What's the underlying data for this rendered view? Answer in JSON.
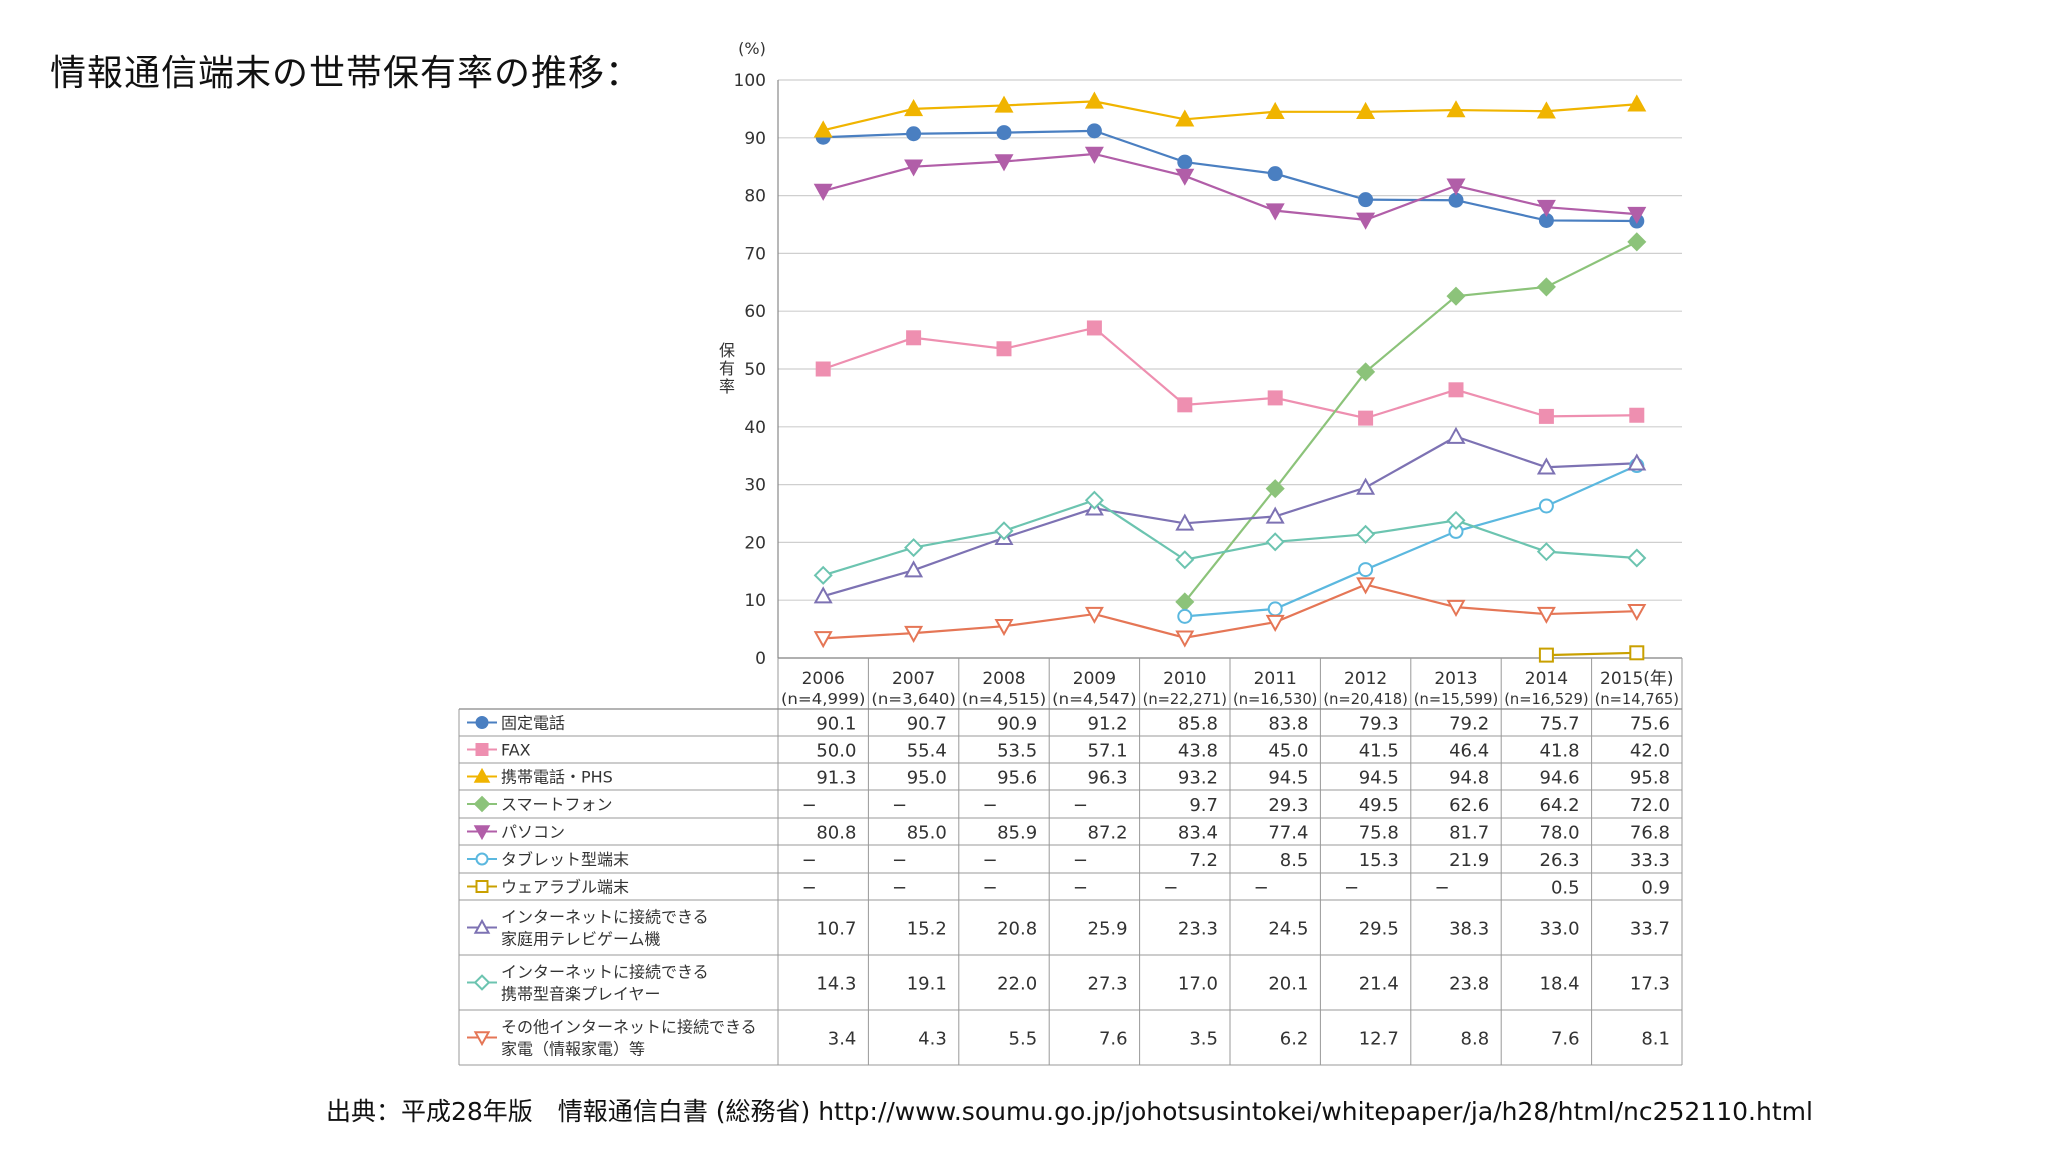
{
  "slide": {
    "title": "情報通信端末の世帯保有率の推移：",
    "source": "出典：平成28年版　情報通信白書 (総務省) http://www.soumu.go.jp/johotsusintokei/whitepaper/ja/h28/html/nc252110.html"
  },
  "chart_data": {
    "type": "line",
    "title": "",
    "y_unit": "(%)",
    "ylabel": "保有率",
    "x_suffix": "(年)",
    "ylim": [
      0,
      100
    ],
    "yticks": [
      0,
      10,
      20,
      30,
      40,
      50,
      60,
      70,
      80,
      90,
      100
    ],
    "grid": true,
    "legend": "table-below",
    "categories": [
      "2006",
      "2007",
      "2008",
      "2009",
      "2010",
      "2011",
      "2012",
      "2013",
      "2014",
      "2015"
    ],
    "sample_sizes": [
      "(n=4,999)",
      "(n=3,640)",
      "(n=4,515)",
      "(n=4,547)",
      "(n=22,271)",
      "(n=16,530)",
      "(n=20,418)",
      "(n=15,599)",
      "(n=16,529)",
      "(n=14,765)"
    ],
    "series": [
      {
        "name": "固定電話",
        "color": "#4a7fc1",
        "marker": "circle-filled",
        "values": [
          90.1,
          90.7,
          90.9,
          91.2,
          85.8,
          83.8,
          79.3,
          79.2,
          75.7,
          75.6
        ],
        "labels": [
          "90.1",
          "90.7",
          "90.9",
          "91.2",
          "85.8",
          "83.8",
          "79.3",
          "79.2",
          "75.7",
          "75.6"
        ]
      },
      {
        "name": "FAX",
        "color": "#ee8fb0",
        "marker": "square-filled",
        "values": [
          50.0,
          55.4,
          53.5,
          57.1,
          43.8,
          45.0,
          41.5,
          46.4,
          41.8,
          42.0
        ],
        "labels": [
          "50.0",
          "55.4",
          "53.5",
          "57.1",
          "43.8",
          "45.0",
          "41.5",
          "46.4",
          "41.8",
          "42.0"
        ]
      },
      {
        "name": "携帯電話・PHS",
        "color": "#f0b400",
        "marker": "triangle-up-filled",
        "values": [
          91.3,
          95.0,
          95.6,
          96.3,
          93.2,
          94.5,
          94.5,
          94.8,
          94.6,
          95.8
        ],
        "labels": [
          "91.3",
          "95.0",
          "95.6",
          "96.3",
          "93.2",
          "94.5",
          "94.5",
          "94.8",
          "94.6",
          "95.8"
        ]
      },
      {
        "name": "スマートフォン",
        "color": "#8cc37a",
        "marker": "diamond-filled",
        "values": [
          null,
          null,
          null,
          null,
          9.7,
          29.3,
          49.5,
          62.6,
          64.2,
          72.0
        ],
        "labels": [
          "−",
          "−",
          "−",
          "−",
          "9.7",
          "29.3",
          "49.5",
          "62.6",
          "64.2",
          "72.0"
        ]
      },
      {
        "name": "パソコン",
        "color": "#b15ea8",
        "marker": "triangle-down-filled",
        "values": [
          80.8,
          85.0,
          85.9,
          87.2,
          83.4,
          77.4,
          75.8,
          81.7,
          78.0,
          76.8
        ],
        "labels": [
          "80.8",
          "85.0",
          "85.9",
          "87.2",
          "83.4",
          "77.4",
          "75.8",
          "81.7",
          "78.0",
          "76.8"
        ]
      },
      {
        "name": "タブレット型端末",
        "color": "#5bb8df",
        "marker": "circle-open",
        "values": [
          null,
          null,
          null,
          null,
          7.2,
          8.5,
          15.3,
          21.9,
          26.3,
          33.3
        ],
        "labels": [
          "−",
          "−",
          "−",
          "−",
          "7.2",
          "8.5",
          "15.3",
          "21.9",
          "26.3",
          "33.3"
        ]
      },
      {
        "name": "ウェアラブル端末",
        "color": "#c9a000",
        "marker": "square-open",
        "values": [
          null,
          null,
          null,
          null,
          null,
          null,
          null,
          null,
          0.5,
          0.9
        ],
        "labels": [
          "−",
          "−",
          "−",
          "−",
          "−",
          "−",
          "−",
          "−",
          "0.5",
          "0.9"
        ]
      },
      {
        "name": "インターネットに接続できる家庭用テレビゲーム機",
        "name_lines": [
          "インターネットに接続できる",
          "家庭用テレビゲーム機"
        ],
        "color": "#7d72b3",
        "marker": "triangle-up-open",
        "values": [
          10.7,
          15.2,
          20.8,
          25.9,
          23.3,
          24.5,
          29.5,
          38.3,
          33.0,
          33.7
        ],
        "labels": [
          "10.7",
          "15.2",
          "20.8",
          "25.9",
          "23.3",
          "24.5",
          "29.5",
          "38.3",
          "33.0",
          "33.7"
        ]
      },
      {
        "name": "インターネットに接続できる携帯型音楽プレイヤー",
        "name_lines": [
          "インターネットに接続できる",
          "携帯型音楽プレイヤー"
        ],
        "color": "#6cc4b0",
        "marker": "diamond-open",
        "values": [
          14.3,
          19.1,
          22.0,
          27.3,
          17.0,
          20.1,
          21.4,
          23.8,
          18.4,
          17.3
        ],
        "labels": [
          "14.3",
          "19.1",
          "22.0",
          "27.3",
          "17.0",
          "20.1",
          "21.4",
          "23.8",
          "18.4",
          "17.3"
        ]
      },
      {
        "name": "その他インターネットに接続できる家電（情報家電）等",
        "name_lines": [
          "その他インターネットに接続できる",
          "家電（情報家電）等"
        ],
        "color": "#e57656",
        "marker": "triangle-down-open",
        "values": [
          3.4,
          4.3,
          5.5,
          7.6,
          3.5,
          6.2,
          12.7,
          8.8,
          7.6,
          8.1
        ],
        "labels": [
          "3.4",
          "4.3",
          "5.5",
          "7.6",
          "3.5",
          "6.2",
          "12.7",
          "8.8",
          "7.6",
          "8.1"
        ]
      }
    ]
  }
}
